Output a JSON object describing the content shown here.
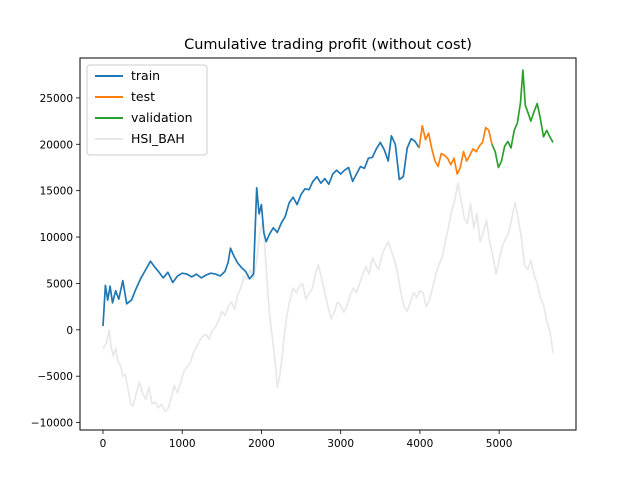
{
  "chart_data": {
    "type": "line",
    "title": "Cumulative trading profit (without cost)",
    "xlabel": "",
    "ylabel": "",
    "xlim": [
      -290,
      5970
    ],
    "ylim": [
      -10800,
      29300
    ],
    "xticks": [
      0,
      1000,
      2000,
      3000,
      4000,
      5000
    ],
    "yticks": [
      -10000,
      -5000,
      0,
      5000,
      10000,
      15000,
      20000,
      25000
    ],
    "grid": false,
    "legend_position": "upper-left",
    "series": [
      {
        "name": "train",
        "color": "#1f77b4",
        "points": [
          [
            0,
            400
          ],
          [
            30,
            4800
          ],
          [
            60,
            3200
          ],
          [
            90,
            4700
          ],
          [
            120,
            2900
          ],
          [
            160,
            4200
          ],
          [
            200,
            3300
          ],
          [
            250,
            5300
          ],
          [
            300,
            2800
          ],
          [
            360,
            3200
          ],
          [
            420,
            4500
          ],
          [
            480,
            5600
          ],
          [
            540,
            6500
          ],
          [
            600,
            7400
          ],
          [
            650,
            6800
          ],
          [
            700,
            6300
          ],
          [
            760,
            5600
          ],
          [
            820,
            6200
          ],
          [
            880,
            5100
          ],
          [
            940,
            5800
          ],
          [
            1000,
            6100
          ],
          [
            1060,
            6000
          ],
          [
            1120,
            5700
          ],
          [
            1180,
            6000
          ],
          [
            1240,
            5600
          ],
          [
            1300,
            5900
          ],
          [
            1360,
            6100
          ],
          [
            1420,
            6000
          ],
          [
            1480,
            5800
          ],
          [
            1540,
            6300
          ],
          [
            1580,
            7300
          ],
          [
            1610,
            8800
          ],
          [
            1650,
            8000
          ],
          [
            1700,
            7200
          ],
          [
            1750,
            6700
          ],
          [
            1800,
            6300
          ],
          [
            1850,
            5500
          ],
          [
            1900,
            6000
          ],
          [
            1940,
            15300
          ],
          [
            1970,
            12500
          ],
          [
            2000,
            13500
          ],
          [
            2030,
            10500
          ],
          [
            2060,
            9500
          ],
          [
            2100,
            10300
          ],
          [
            2150,
            11000
          ],
          [
            2200,
            10500
          ],
          [
            2250,
            11500
          ],
          [
            2300,
            12200
          ],
          [
            2350,
            13700
          ],
          [
            2400,
            14300
          ],
          [
            2450,
            13500
          ],
          [
            2500,
            14600
          ],
          [
            2550,
            15200
          ],
          [
            2600,
            15100
          ],
          [
            2650,
            16000
          ],
          [
            2700,
            16500
          ],
          [
            2750,
            15800
          ],
          [
            2800,
            16300
          ],
          [
            2850,
            15700
          ],
          [
            2900,
            16800
          ],
          [
            2950,
            17200
          ],
          [
            3000,
            16800
          ],
          [
            3050,
            17200
          ],
          [
            3100,
            17500
          ],
          [
            3150,
            16000
          ],
          [
            3200,
            16800
          ],
          [
            3250,
            17600
          ],
          [
            3300,
            17400
          ],
          [
            3350,
            18500
          ],
          [
            3400,
            18600
          ],
          [
            3450,
            19500
          ],
          [
            3500,
            20200
          ],
          [
            3550,
            19400
          ],
          [
            3600,
            18200
          ],
          [
            3640,
            20900
          ],
          [
            3690,
            20000
          ],
          [
            3740,
            16200
          ],
          [
            3790,
            16500
          ],
          [
            3840,
            19600
          ],
          [
            3890,
            20600
          ],
          [
            3940,
            20300
          ],
          [
            3990,
            19600
          ]
        ]
      },
      {
        "name": "test",
        "color": "#ff7f0e",
        "points": [
          [
            3990,
            19600
          ],
          [
            4030,
            22000
          ],
          [
            4070,
            20500
          ],
          [
            4110,
            21200
          ],
          [
            4150,
            19500
          ],
          [
            4190,
            18200
          ],
          [
            4230,
            17600
          ],
          [
            4270,
            19000
          ],
          [
            4310,
            18800
          ],
          [
            4350,
            18500
          ],
          [
            4390,
            17800
          ],
          [
            4430,
            18500
          ],
          [
            4470,
            16800
          ],
          [
            4510,
            17500
          ],
          [
            4550,
            19200
          ],
          [
            4590,
            18200
          ],
          [
            4630,
            18800
          ],
          [
            4670,
            19500
          ],
          [
            4710,
            19200
          ],
          [
            4750,
            19800
          ],
          [
            4790,
            20200
          ],
          [
            4830,
            21800
          ],
          [
            4870,
            21500
          ],
          [
            4910,
            20000
          ]
        ]
      },
      {
        "name": "validation",
        "color": "#2ca02c",
        "points": [
          [
            4910,
            20000
          ],
          [
            4950,
            19200
          ],
          [
            4990,
            17500
          ],
          [
            5030,
            18200
          ],
          [
            5070,
            19800
          ],
          [
            5110,
            20300
          ],
          [
            5150,
            19600
          ],
          [
            5190,
            21500
          ],
          [
            5230,
            22300
          ],
          [
            5270,
            24500
          ],
          [
            5300,
            28000
          ],
          [
            5330,
            24200
          ],
          [
            5360,
            23500
          ],
          [
            5400,
            22500
          ],
          [
            5440,
            23500
          ],
          [
            5480,
            24400
          ],
          [
            5520,
            22800
          ],
          [
            5560,
            20800
          ],
          [
            5600,
            21500
          ],
          [
            5640,
            20800
          ],
          [
            5680,
            20200
          ]
        ]
      },
      {
        "name": "HSI_BAH",
        "color": "#e8e8e8",
        "points": [
          [
            0,
            -2000
          ],
          [
            40,
            -1500
          ],
          [
            80,
            0
          ],
          [
            100,
            -1800
          ],
          [
            130,
            -2800
          ],
          [
            160,
            -2000
          ],
          [
            190,
            -3500
          ],
          [
            220,
            -3800
          ],
          [
            250,
            -5000
          ],
          [
            280,
            -4800
          ],
          [
            320,
            -6500
          ],
          [
            350,
            -8000
          ],
          [
            380,
            -8200
          ],
          [
            420,
            -6800
          ],
          [
            460,
            -5600
          ],
          [
            500,
            -6800
          ],
          [
            540,
            -7500
          ],
          [
            580,
            -6200
          ],
          [
            620,
            -8000
          ],
          [
            660,
            -7800
          ],
          [
            700,
            -8400
          ],
          [
            740,
            -8000
          ],
          [
            780,
            -8800
          ],
          [
            820,
            -8500
          ],
          [
            860,
            -7400
          ],
          [
            900,
            -6000
          ],
          [
            940,
            -6800
          ],
          [
            980,
            -5700
          ],
          [
            1020,
            -4500
          ],
          [
            1060,
            -4000
          ],
          [
            1100,
            -3600
          ],
          [
            1140,
            -2500
          ],
          [
            1180,
            -1800
          ],
          [
            1220,
            -1200
          ],
          [
            1260,
            -700
          ],
          [
            1300,
            -500
          ],
          [
            1340,
            -1000
          ],
          [
            1380,
            -100
          ],
          [
            1420,
            300
          ],
          [
            1460,
            1000
          ],
          [
            1500,
            2000
          ],
          [
            1540,
            1500
          ],
          [
            1580,
            2500
          ],
          [
            1620,
            3000
          ],
          [
            1660,
            2200
          ],
          [
            1700,
            3800
          ],
          [
            1740,
            4500
          ],
          [
            1780,
            5800
          ],
          [
            1820,
            5500
          ],
          [
            1860,
            6500
          ],
          [
            1900,
            5500
          ],
          [
            1940,
            7500
          ],
          [
            1980,
            10500
          ],
          [
            2020,
            11800
          ],
          [
            2050,
            8000
          ],
          [
            2080,
            4000
          ],
          [
            2110,
            1000
          ],
          [
            2140,
            -1000
          ],
          [
            2160,
            -2500
          ],
          [
            2180,
            -4000
          ],
          [
            2200,
            -6200
          ],
          [
            2230,
            -5000
          ],
          [
            2260,
            -3000
          ],
          [
            2290,
            -500
          ],
          [
            2320,
            1500
          ],
          [
            2360,
            3300
          ],
          [
            2400,
            4500
          ],
          [
            2440,
            4000
          ],
          [
            2480,
            4700
          ],
          [
            2520,
            5000
          ],
          [
            2560,
            3300
          ],
          [
            2600,
            3900
          ],
          [
            2640,
            4400
          ],
          [
            2680,
            6000
          ],
          [
            2720,
            7000
          ],
          [
            2760,
            5500
          ],
          [
            2800,
            4000
          ],
          [
            2840,
            2500
          ],
          [
            2880,
            1200
          ],
          [
            2920,
            1900
          ],
          [
            2960,
            3000
          ],
          [
            3000,
            2600
          ],
          [
            3040,
            1900
          ],
          [
            3080,
            2600
          ],
          [
            3120,
            3800
          ],
          [
            3160,
            4500
          ],
          [
            3200,
            4000
          ],
          [
            3240,
            5000
          ],
          [
            3280,
            6000
          ],
          [
            3320,
            6800
          ],
          [
            3360,
            6000
          ],
          [
            3400,
            7800
          ],
          [
            3440,
            7000
          ],
          [
            3480,
            6500
          ],
          [
            3520,
            8000
          ],
          [
            3560,
            8800
          ],
          [
            3600,
            9500
          ],
          [
            3640,
            8500
          ],
          [
            3680,
            7500
          ],
          [
            3720,
            6000
          ],
          [
            3760,
            4000
          ],
          [
            3800,
            2500
          ],
          [
            3840,
            2000
          ],
          [
            3880,
            3000
          ],
          [
            3920,
            4000
          ],
          [
            3960,
            3500
          ],
          [
            4000,
            4200
          ],
          [
            4040,
            4000
          ],
          [
            4080,
            2500
          ],
          [
            4120,
            3200
          ],
          [
            4160,
            4500
          ],
          [
            4200,
            6000
          ],
          [
            4240,
            7000
          ],
          [
            4280,
            7800
          ],
          [
            4320,
            9500
          ],
          [
            4360,
            11000
          ],
          [
            4400,
            12800
          ],
          [
            4440,
            14000
          ],
          [
            4480,
            15800
          ],
          [
            4520,
            14000
          ],
          [
            4560,
            12000
          ],
          [
            4600,
            11500
          ],
          [
            4640,
            13600
          ],
          [
            4680,
            11000
          ],
          [
            4720,
            12500
          ],
          [
            4760,
            9500
          ],
          [
            4800,
            10500
          ],
          [
            4840,
            11800
          ],
          [
            4880,
            9500
          ],
          [
            4920,
            8000
          ],
          [
            4960,
            6000
          ],
          [
            5000,
            7500
          ],
          [
            5040,
            9000
          ],
          [
            5080,
            9800
          ],
          [
            5120,
            10500
          ],
          [
            5160,
            12000
          ],
          [
            5200,
            13700
          ],
          [
            5240,
            12000
          ],
          [
            5280,
            10000
          ],
          [
            5320,
            7000
          ],
          [
            5360,
            6500
          ],
          [
            5400,
            7500
          ],
          [
            5440,
            6000
          ],
          [
            5480,
            5000
          ],
          [
            5520,
            3500
          ],
          [
            5560,
            2700
          ],
          [
            5600,
            1000
          ],
          [
            5640,
            -200
          ],
          [
            5660,
            -1200
          ],
          [
            5680,
            -2500
          ]
        ]
      }
    ]
  }
}
